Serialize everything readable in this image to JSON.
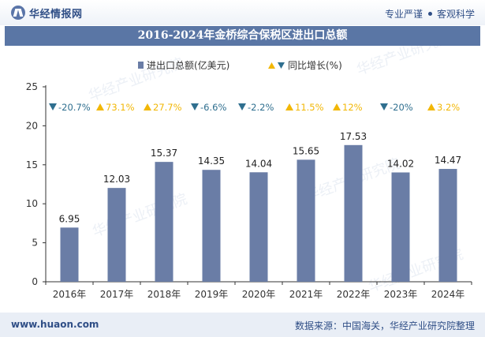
{
  "header": {
    "brand_name": "华经情报网",
    "slogan_left": "专业严谨",
    "slogan_right": "客观科学"
  },
  "watermark": "华经产业研究院",
  "chart_data": {
    "type": "bar",
    "title": "2016-2024年金桥综合保税区进出口总额",
    "categories": [
      "2016年",
      "2017年",
      "2018年",
      "2019年",
      "2020年",
      "2021年",
      "2022年",
      "2023年",
      "2024年"
    ],
    "series": [
      {
        "name": "进出口总额(亿美元)",
        "values": [
          6.95,
          12.03,
          15.37,
          14.35,
          14.04,
          15.65,
          17.53,
          14.02,
          14.47
        ],
        "color": "#6a7da6"
      }
    ],
    "growth": {
      "name": "同比增长(%)",
      "labels": [
        "-20.7%",
        "73.1%",
        "27.7%",
        "-6.6%",
        "-2.2%",
        "11.5%",
        "12%",
        "-20%",
        "3.2%"
      ],
      "directions": [
        "down",
        "up",
        "up",
        "down",
        "down",
        "up",
        "up",
        "down",
        "up"
      ],
      "up_color": "#f2b705",
      "down_color": "#2f6f8f"
    },
    "y_ticks": [
      "0",
      "5",
      "10",
      "15",
      "20",
      "25"
    ],
    "ylim": [
      0,
      25
    ],
    "grid": false,
    "legend_position": "top-center"
  },
  "footer": {
    "url": "www.huaon.com",
    "source": "数据来源：中国海关，华经产业研究院整理"
  }
}
